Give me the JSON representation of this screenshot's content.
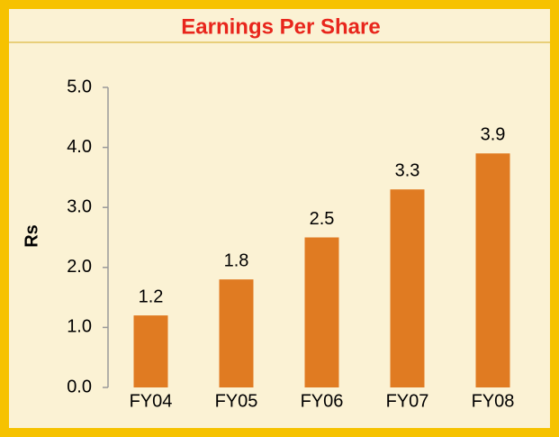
{
  "chart_data": {
    "type": "bar",
    "title": "Earnings Per Share",
    "y_label": "Rs",
    "categories": [
      "FY04",
      "FY05",
      "FY06",
      "FY07",
      "FY08"
    ],
    "values": [
      1.2,
      1.8,
      2.5,
      3.3,
      3.9
    ],
    "color": "#e07b22",
    "ylim": [
      0,
      5
    ],
    "yticks": [
      {
        "value": 0,
        "label": "0.0"
      },
      {
        "value": 1,
        "label": "1.0"
      },
      {
        "value": 2,
        "label": "2.0"
      },
      {
        "value": 3,
        "label": "3.0"
      },
      {
        "value": 4,
        "label": "4.0"
      },
      {
        "value": 5,
        "label": "5.0"
      }
    ],
    "grid": false
  }
}
